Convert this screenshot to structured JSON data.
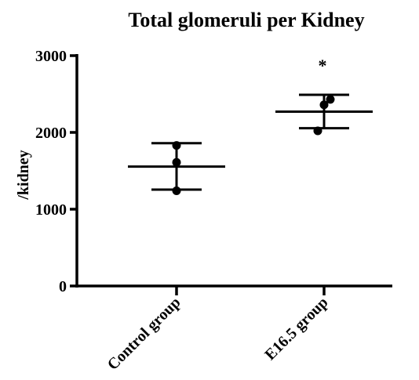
{
  "chart_data": {
    "type": "scatter",
    "title": "Total glomeruli per Kidney",
    "xlabel": "",
    "ylabel": "/kidney",
    "ylim": [
      0,
      3000
    ],
    "yticks": [
      "0",
      "1000",
      "2000",
      "3000"
    ],
    "categories": [
      "Control group",
      "E16.5 group"
    ],
    "points": [
      [
        1240,
        1610,
        1830
      ],
      [
        2020,
        2360,
        2430
      ]
    ],
    "mean": [
      1555,
      2270
    ],
    "sd_upper": [
      1860,
      2490
    ],
    "sd_lower": [
      1255,
      2055
    ],
    "annotations": [
      {
        "category": "E16.5 group",
        "text": "*"
      }
    ],
    "grid": false,
    "legend": "none"
  }
}
